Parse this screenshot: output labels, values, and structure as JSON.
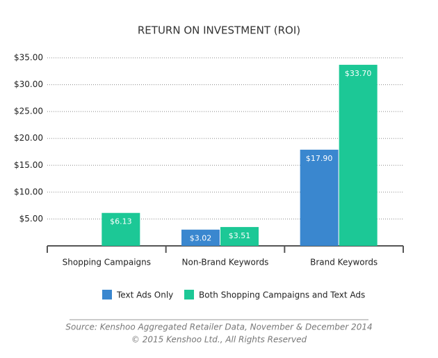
{
  "chart_data": {
    "type": "bar",
    "title": "RETURN ON INVESTMENT (ROI)",
    "categories": [
      "Shopping Campaigns",
      "Non-Brand Keywords",
      "Brand Keywords"
    ],
    "series": [
      {
        "name": "Text Ads Only",
        "color": "#3a87cf",
        "values": [
          null,
          3.02,
          17.9
        ],
        "value_labels": [
          null,
          "$3.02",
          "$17.90"
        ]
      },
      {
        "name": "Both Shopping Campaigns and Text Ads",
        "color": "#1cc896",
        "values": [
          6.13,
          3.51,
          33.7
        ],
        "value_labels": [
          "$6.13",
          "$3.51",
          "$33.70"
        ]
      }
    ],
    "ylim": [
      0,
      35
    ],
    "yticks": [
      {
        "value": 5,
        "label": "$5.00"
      },
      {
        "value": 10,
        "label": "$10.00"
      },
      {
        "value": 15,
        "label": "$15.00"
      },
      {
        "value": 20,
        "label": "$20.00"
      },
      {
        "value": 25,
        "label": "$25.00"
      },
      {
        "value": 30,
        "label": "$30.00"
      },
      {
        "value": 35,
        "label": "$35.00"
      }
    ],
    "grid": true,
    "source": "Source: Kenshoo Aggregated Retailer Data, November & December 2014",
    "copyright": "© 2015 Kenshoo Ltd., All Rights Reserved"
  }
}
